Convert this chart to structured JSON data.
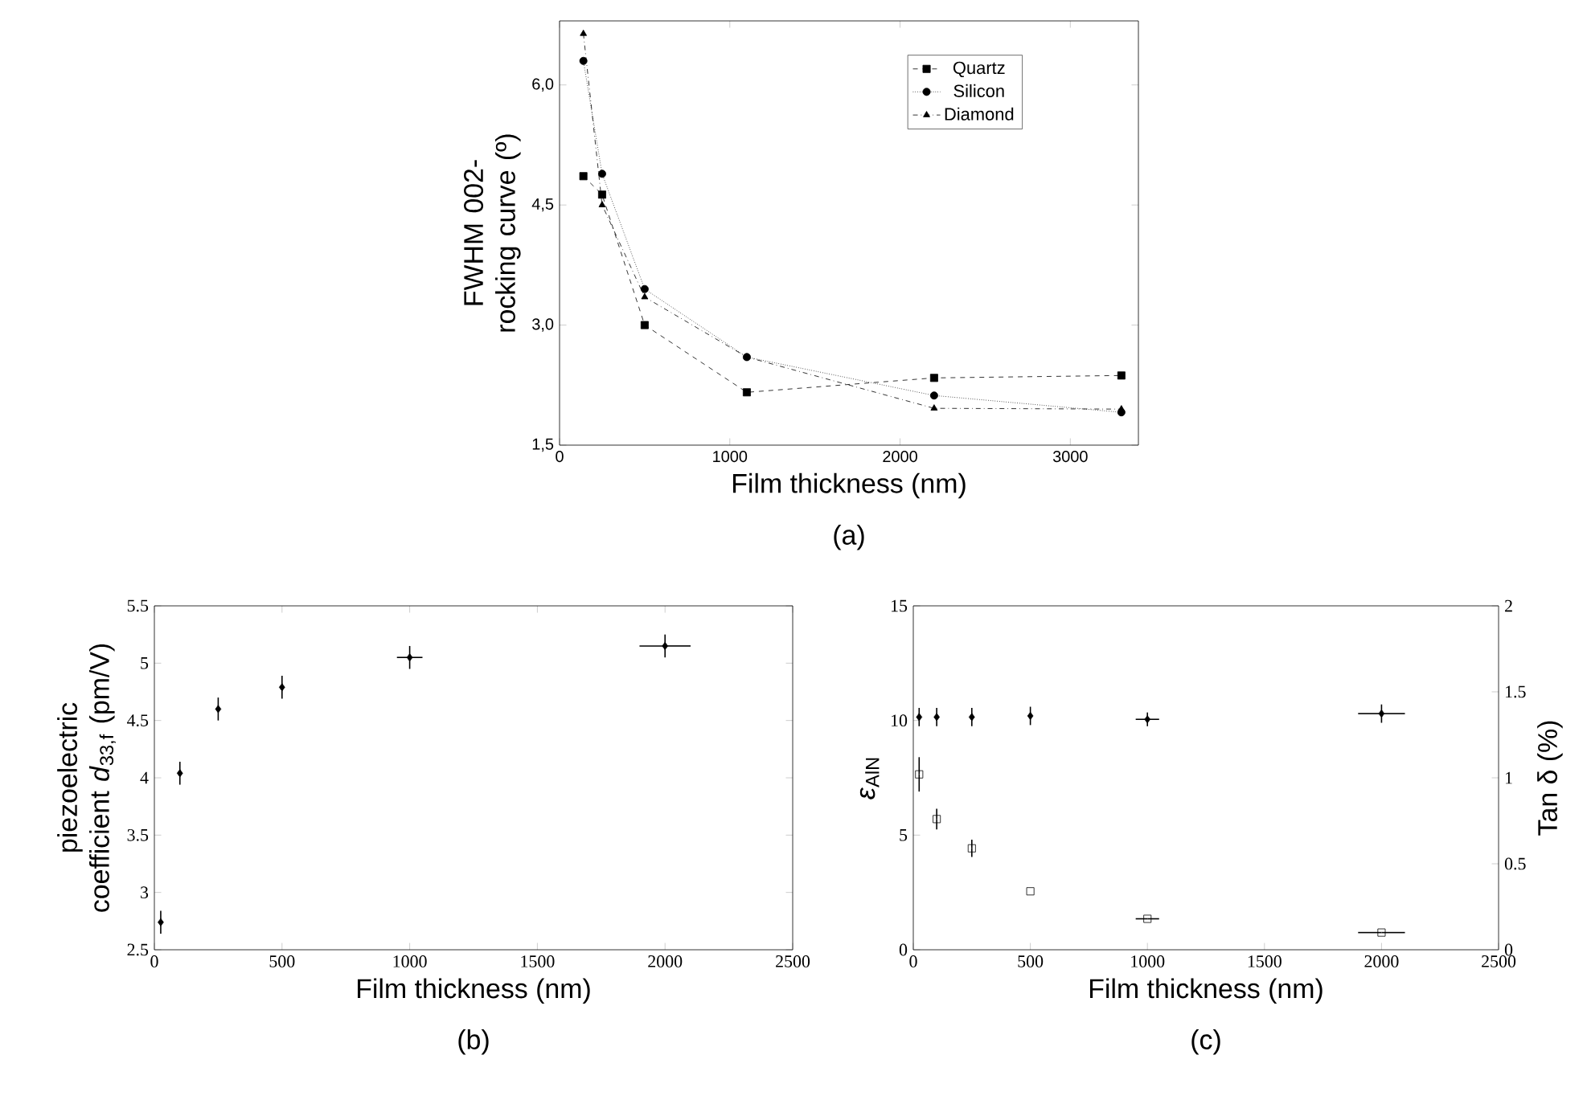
{
  "chart_data": [
    {
      "type": "line",
      "xlabel": "Film thickness (nm)",
      "ylabel": "FWHM 002-rocking curve (º)",
      "annotations": [
        "(a)"
      ],
      "x": [
        140,
        250,
        500,
        1100,
        2200,
        3300
      ],
      "series": [
        {
          "name": "Quartz",
          "color": "#000000",
          "marker": "square",
          "line_style": "dashed",
          "values": [
            4.86,
            4.63,
            3.0,
            2.16,
            2.34,
            2.37
          ]
        },
        {
          "name": "Silicon",
          "color": "#000000",
          "marker": "circle",
          "line_style": "dotted",
          "values": [
            6.3,
            4.89,
            3.45,
            2.6,
            2.12,
            1.91
          ]
        },
        {
          "name": "Diamond",
          "color": "#000000",
          "marker": "triangle",
          "line_style": "dashdot",
          "values": [
            6.64,
            4.5,
            3.35,
            2.6,
            1.96,
            1.95
          ]
        }
      ],
      "xlim": [
        0,
        3400
      ],
      "ylim": [
        1.5,
        6.8
      ],
      "xticks": [
        0,
        1000,
        2000,
        3000
      ],
      "yticks": [
        {
          "value": 1.5,
          "label": "1,5"
        },
        {
          "value": 3,
          "label": "3,0"
        },
        {
          "value": 4.5,
          "label": "4,5"
        },
        {
          "value": 6,
          "label": "6,0"
        }
      ],
      "legend": "top right"
    },
    {
      "type": "scatter",
      "xlabel": "Film thickness (nm)",
      "ylabel": "piezoelectric coefficient *d*$_{33,f}$ (pm/V)",
      "annotations": [
        "(b)"
      ],
      "x": [
        25,
        100,
        250,
        500,
        1000,
        2000
      ],
      "marker": "diamond",
      "series": [
        {
          "color": "#000000",
          "values": [
            2.74,
            4.04,
            4.6,
            4.79,
            5.05,
            5.15
          ],
          "errors": [
            0.1,
            0.1,
            0.1,
            0.1,
            0.1,
            0.1
          ],
          "xerrors": [
            null,
            null,
            null,
            null,
            50,
            100
          ]
        }
      ],
      "xlim": [
        0,
        2500
      ],
      "ylim": [
        2.5,
        5.5
      ],
      "xticks": [
        0,
        500,
        1000,
        1500,
        2000,
        2500
      ],
      "yticks": [
        2.5,
        3,
        3.5,
        4,
        4.5,
        5,
        5.5
      ]
    },
    {
      "type": "scatter",
      "xlabel": "Film thickness (nm)",
      "ylabel": "*ε*$_{AlN}$",
      "y2label": "Tan δ (%)",
      "annotations": [
        "(c)"
      ],
      "x": [
        25,
        100,
        250,
        500,
        1000,
        2000
      ],
      "series": [
        {
          "color": "#000000",
          "marker": "diamond",
          "values": [
            10.15,
            10.15,
            10.15,
            10.2,
            10.05,
            10.3
          ],
          "errors": [
            0.4,
            0.4,
            0.4,
            0.4,
            0.3,
            0.4
          ],
          "xerrors": [
            null,
            null,
            null,
            null,
            50,
            100
          ]
        },
        {
          "color": "#000000",
          "marker": "square",
          "axis": "y2",
          "values": [
            1.02,
            0.76,
            0.59,
            0.34,
            0.18,
            0.1
          ],
          "errors": [
            0.1,
            0.06,
            0.05,
            null,
            null,
            null
          ],
          "xerrors": [
            null,
            null,
            null,
            null,
            50,
            100
          ]
        }
      ],
      "xlim": [
        0,
        2500
      ],
      "ylim": [
        0,
        15
      ],
      "xticks": [
        0,
        500,
        1000,
        1500,
        2000,
        2500
      ],
      "yticks": [
        0,
        5,
        10,
        15
      ],
      "y2lim": [
        0,
        2
      ],
      "y2ticks": [
        0,
        0.5,
        1,
        1.5,
        2
      ]
    }
  ]
}
